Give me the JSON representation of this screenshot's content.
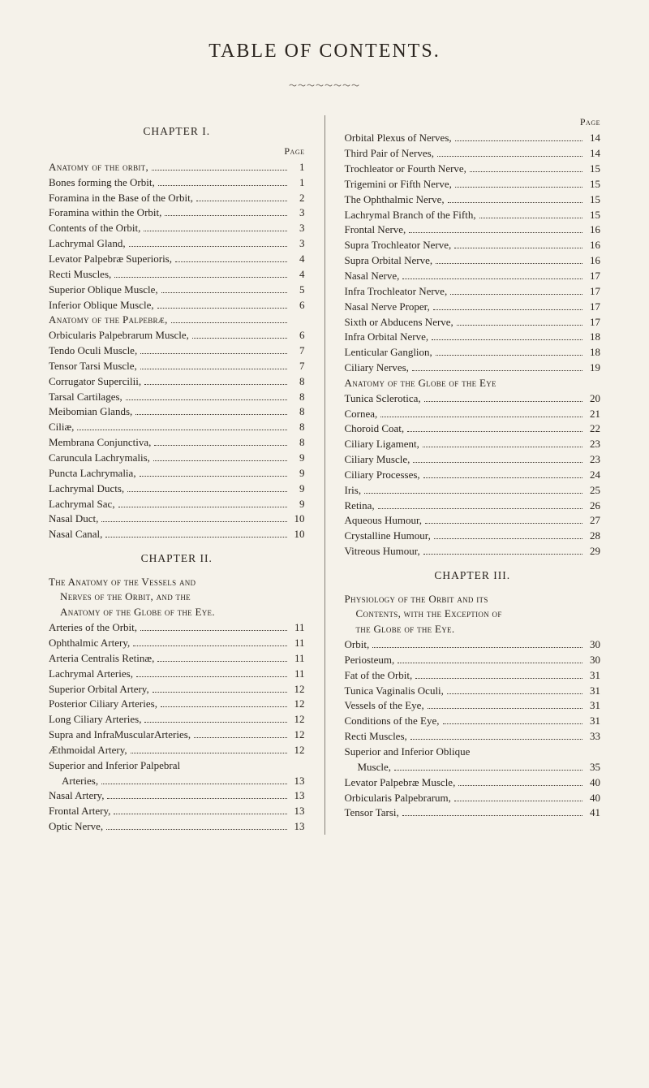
{
  "title": "TABLE OF CONTENTS.",
  "ornament": "～～～～～～～～",
  "page_label": "Page",
  "left": {
    "chapters": [
      {
        "heading": "CHAPTER I.",
        "show_page_head": true,
        "entries": [
          {
            "label": "Anatomy of the orbit,",
            "page": "1",
            "sc": true
          },
          {
            "label": "Bones forming the Orbit,",
            "page": "1"
          },
          {
            "label": "Foramina in the Base of the Orbit,",
            "page": "2"
          },
          {
            "label": "Foramina within the Orbit,",
            "page": "3"
          },
          {
            "label": "Contents of the Orbit,",
            "page": "3"
          },
          {
            "label": "Lachrymal Gland,",
            "page": "3"
          },
          {
            "label": "Levator Palpebræ Superioris,",
            "page": "4"
          },
          {
            "label": "Recti Muscles,",
            "page": "4"
          },
          {
            "label": "Superior Oblique Muscle,",
            "page": "5"
          },
          {
            "label": "Inferior Oblique Muscle,",
            "page": "6"
          },
          {
            "label": "Anatomy of the Palpebræ,",
            "page": "",
            "sc": true
          },
          {
            "label": "Orbicularis Palpebrarum Muscle,",
            "page": "6"
          },
          {
            "label": "Tendo Oculi Muscle,",
            "page": "7"
          },
          {
            "label": "Tensor Tarsi Muscle,",
            "page": "7"
          },
          {
            "label": "Corrugator Supercilii,",
            "page": "8"
          },
          {
            "label": "Tarsal Cartilages,",
            "page": "8"
          },
          {
            "label": "Meibomian Glands,",
            "page": "8"
          },
          {
            "label": "Ciliæ,",
            "page": "8"
          },
          {
            "label": "Membrana Conjunctiva,",
            "page": "8"
          },
          {
            "label": "Caruncula Lachrymalis,",
            "page": "9"
          },
          {
            "label": "Puncta Lachrymalia,",
            "page": "9"
          },
          {
            "label": "Lachrymal Ducts,",
            "page": "9"
          },
          {
            "label": "Lachrymal Sac,",
            "page": "9"
          },
          {
            "label": "Nasal Duct,",
            "page": "10"
          },
          {
            "label": "Nasal Canal,",
            "page": "10"
          }
        ]
      },
      {
        "heading": "CHAPTER II.",
        "show_page_head": false,
        "run_in": [
          "The Anatomy of the Vessels and",
          "Nerves of the Orbit, and the",
          "Anatomy of the Globe of the Eye."
        ],
        "entries": [
          {
            "label": "Arteries of the Orbit,",
            "page": "11"
          },
          {
            "label": "Ophthalmic Artery,",
            "page": "11"
          },
          {
            "label": "Arteria Centralis Retinæ,",
            "page": "11"
          },
          {
            "label": "Lachrymal Arteries,",
            "page": "11"
          },
          {
            "label": "Superior Orbital Artery,",
            "page": "12"
          },
          {
            "label": "Posterior Ciliary Arteries,",
            "page": "12"
          },
          {
            "label": "Long Ciliary Arteries,",
            "page": "12"
          },
          {
            "label": "Supra and InfraMuscularArteries,",
            "page": "12"
          },
          {
            "label": "Æthmoidal Artery,",
            "page": "12"
          },
          {
            "label": "Superior and Inferior Palpebral",
            "page": "",
            "no_dots": true
          },
          {
            "label": "Arteries,",
            "page": "13",
            "indent": true
          },
          {
            "label": "Nasal Artery,",
            "page": "13"
          },
          {
            "label": "Frontal Artery,",
            "page": "13"
          },
          {
            "label": "Optic Nerve,",
            "page": "13"
          }
        ]
      }
    ]
  },
  "right": {
    "chapters": [
      {
        "heading": "",
        "show_page_head": true,
        "entries": [
          {
            "label": "Orbital Plexus of Nerves,",
            "page": "14"
          },
          {
            "label": "Third Pair of Nerves,",
            "page": "14"
          },
          {
            "label": "Trochleator or Fourth Nerve,",
            "page": "15"
          },
          {
            "label": "Trigemini or Fifth Nerve,",
            "page": "15"
          },
          {
            "label": "The Ophthalmic Nerve,",
            "page": "15"
          },
          {
            "label": "Lachrymal Branch of the Fifth,",
            "page": "15"
          },
          {
            "label": "Frontal Nerve,",
            "page": "16"
          },
          {
            "label": "Supra Trochleator Nerve,",
            "page": "16"
          },
          {
            "label": "Supra Orbital Nerve,",
            "page": "16"
          },
          {
            "label": "Nasal Nerve,",
            "page": "17"
          },
          {
            "label": "Infra Trochleator Nerve,",
            "page": "17"
          },
          {
            "label": "Nasal Nerve Proper,",
            "page": "17"
          },
          {
            "label": "Sixth or Abducens Nerve,",
            "page": "17"
          },
          {
            "label": "Infra Orbital Nerve,",
            "page": "18"
          },
          {
            "label": "Lenticular Ganglion,",
            "page": "18"
          },
          {
            "label": "Ciliary Nerves,",
            "page": "19"
          },
          {
            "label": "Anatomy of the Globe of the Eye",
            "page": "",
            "sc": true,
            "no_dots": true
          },
          {
            "label": "Tunica Sclerotica,",
            "page": "20"
          },
          {
            "label": "Cornea,",
            "page": "21"
          },
          {
            "label": "Choroid Coat,",
            "page": "22"
          },
          {
            "label": "Ciliary Ligament,",
            "page": "23"
          },
          {
            "label": "Ciliary Muscle,",
            "page": "23"
          },
          {
            "label": "Ciliary Processes,",
            "page": "24"
          },
          {
            "label": "Iris,",
            "page": "25"
          },
          {
            "label": "Retina,",
            "page": "26"
          },
          {
            "label": "Aqueous Humour,",
            "page": "27"
          },
          {
            "label": "Crystalline Humour,",
            "page": "28"
          },
          {
            "label": "Vitreous Humour,",
            "page": "29"
          }
        ]
      },
      {
        "heading": "CHAPTER III.",
        "show_page_head": false,
        "run_in": [
          "Physiology of the Orbit and its",
          "Contents, with the Exception of",
          "the Globe of the Eye."
        ],
        "entries": [
          {
            "label": "Orbit,",
            "page": "30"
          },
          {
            "label": "Periosteum,",
            "page": "30"
          },
          {
            "label": "Fat of the Orbit,",
            "page": "31"
          },
          {
            "label": "Tunica Vaginalis Oculi,",
            "page": "31"
          },
          {
            "label": "Vessels of the Eye,",
            "page": "31"
          },
          {
            "label": "Conditions of the Eye,",
            "page": "31"
          },
          {
            "label": "Recti Muscles,",
            "page": "33"
          },
          {
            "label": "Superior and Inferior Oblique",
            "page": "",
            "no_dots": true
          },
          {
            "label": "Muscle,",
            "page": "35",
            "indent": true
          },
          {
            "label": "Levator Palpebræ Muscle,",
            "page": "40"
          },
          {
            "label": "Orbicularis Palpebrarum,",
            "page": "40"
          },
          {
            "label": "Tensor Tarsi,",
            "page": "41"
          }
        ]
      }
    ]
  }
}
